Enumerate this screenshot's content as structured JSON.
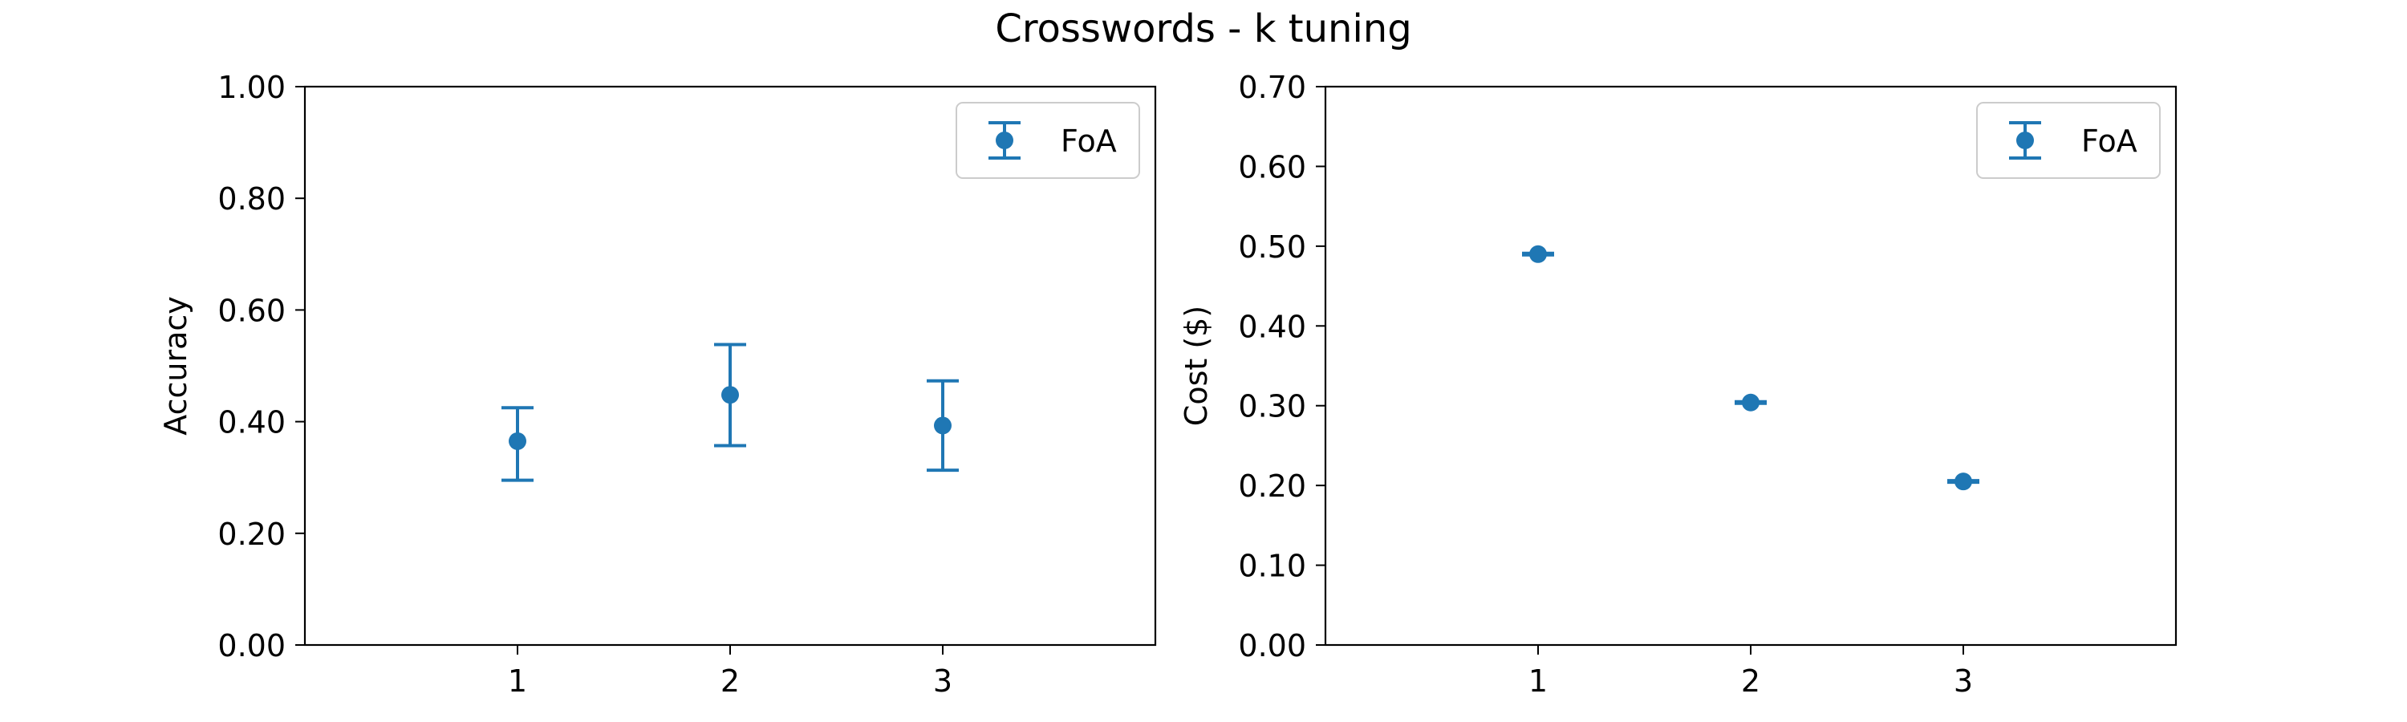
{
  "figure": {
    "title": "Crosswords - k tuning"
  },
  "chart_data": [
    {
      "type": "scatter",
      "title": "",
      "xlabel": "",
      "ylabel": "Accuracy",
      "x": [
        1,
        2,
        3
      ],
      "x_tick_labels": [
        "1",
        "2",
        "3"
      ],
      "xlim": [
        0,
        4
      ],
      "ylim": [
        0.0,
        1.0
      ],
      "y_ticks": [
        0.0,
        0.2,
        0.4,
        0.6,
        0.8,
        1.0
      ],
      "y_tick_labels": [
        "0.00",
        "0.20",
        "0.40",
        "0.60",
        "0.80",
        "1.00"
      ],
      "grid": false,
      "legend_position": "top-right",
      "series": [
        {
          "name": "FoA",
          "color": "#1f77b4",
          "values": [
            0.365,
            0.448,
            0.393
          ],
          "error_low": [
            0.295,
            0.357,
            0.313
          ],
          "error_high": [
            0.425,
            0.538,
            0.473
          ]
        }
      ]
    },
    {
      "type": "scatter",
      "title": "",
      "xlabel": "",
      "ylabel": "Cost ($)",
      "x": [
        1,
        2,
        3
      ],
      "x_tick_labels": [
        "1",
        "2",
        "3"
      ],
      "xlim": [
        0,
        4
      ],
      "ylim": [
        0.0,
        0.7
      ],
      "y_ticks": [
        0.0,
        0.1,
        0.2,
        0.3,
        0.4,
        0.5,
        0.6,
        0.7
      ],
      "y_tick_labels": [
        "0.00",
        "0.10",
        "0.20",
        "0.30",
        "0.40",
        "0.50",
        "0.60",
        "0.70"
      ],
      "grid": false,
      "legend_position": "top-right",
      "series": [
        {
          "name": "FoA",
          "color": "#1f77b4",
          "values": [
            0.49,
            0.304,
            0.205
          ],
          "error_low": [
            0.489,
            0.303,
            0.204
          ],
          "error_high": [
            0.491,
            0.305,
            0.206
          ]
        }
      ]
    }
  ]
}
